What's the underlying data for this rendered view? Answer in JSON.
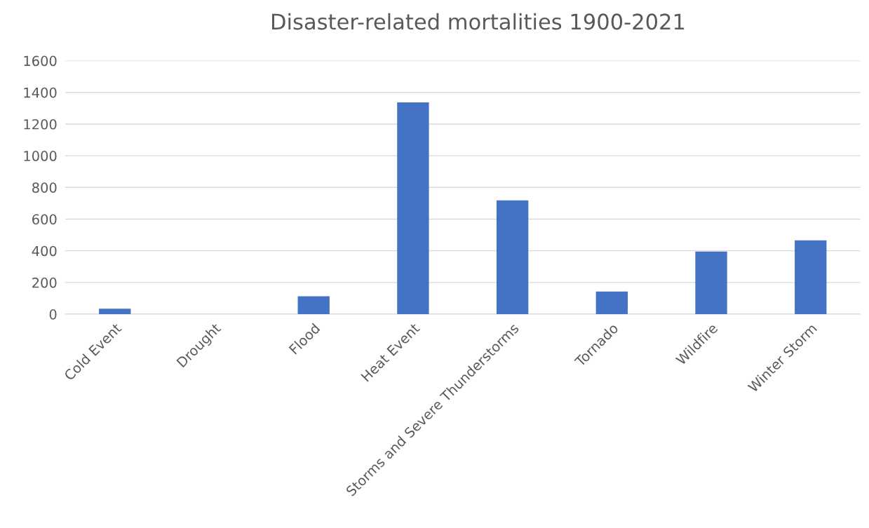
{
  "chart_data": {
    "type": "bar",
    "title": "Disaster-related mortalities 1900-2021",
    "categories": [
      "Cold Event",
      "Drought",
      "Flood",
      "Heat Event",
      "Storms and Severe Thunderstorms",
      "Tornado",
      "Wildfire",
      "Winter Storm"
    ],
    "values": [
      35,
      0,
      113,
      1337,
      718,
      143,
      395,
      466
    ],
    "color": "#4472c4",
    "ylim": [
      0,
      1600
    ],
    "yticks": [
      0,
      200,
      400,
      600,
      800,
      1000,
      1200,
      1400,
      1600
    ],
    "grid": "y"
  }
}
